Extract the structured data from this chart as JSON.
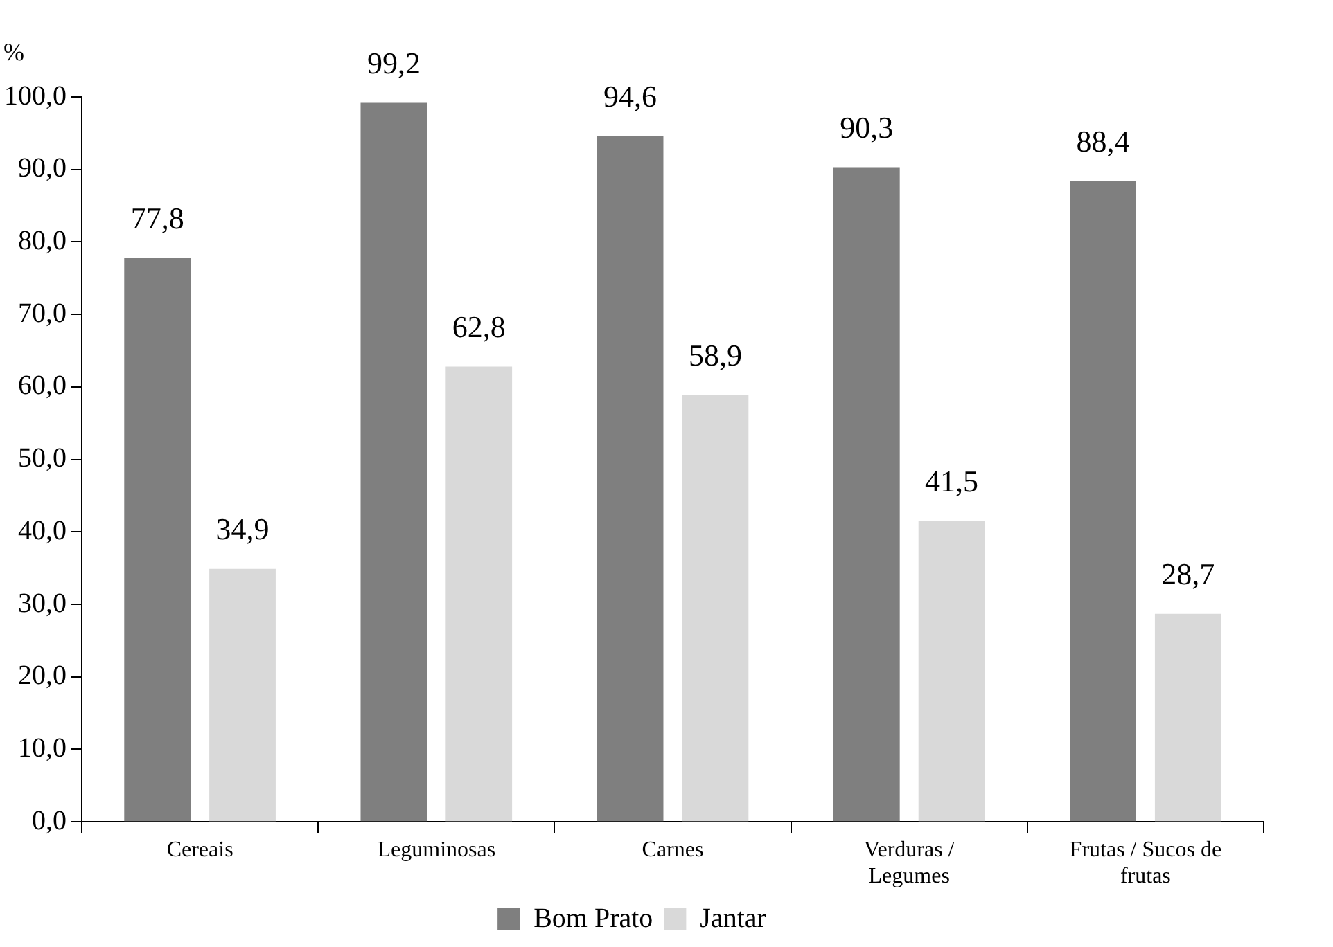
{
  "chart_data": {
    "type": "bar",
    "ylabel": "%",
    "categories": [
      "Cereais",
      "Leguminosas",
      "Carnes",
      "Verduras / Legumes",
      "Frutas / Sucos de frutas"
    ],
    "series": [
      {
        "name": "Bom Prato",
        "color": "#7f7f7f",
        "values": [
          77.8,
          99.2,
          94.6,
          90.3,
          88.4
        ]
      },
      {
        "name": "Jantar",
        "color": "#d9d9d9",
        "values": [
          34.9,
          62.8,
          58.9,
          41.5,
          28.7
        ]
      }
    ],
    "ylim": [
      0,
      100
    ],
    "yticks": [
      {
        "value": 0,
        "label": "0,0"
      },
      {
        "value": 10,
        "label": "10,0"
      },
      {
        "value": 20,
        "label": "20,0"
      },
      {
        "value": 30,
        "label": "30,0"
      },
      {
        "value": 40,
        "label": "40,0"
      },
      {
        "value": 50,
        "label": "50,0"
      },
      {
        "value": 60,
        "label": "60,0"
      },
      {
        "value": 70,
        "label": "70,0"
      },
      {
        "value": 80,
        "label": "80,0"
      },
      {
        "value": 90,
        "label": "90,0"
      },
      {
        "value": 100,
        "label": "100,0"
      }
    ],
    "value_labels": [
      [
        "77,8",
        "99,2",
        "94,6",
        "90,3",
        "88,4"
      ],
      [
        "34,9",
        "62,8",
        "58,9",
        "41,5",
        "28,7"
      ]
    ],
    "grid": false,
    "legend": "bottom"
  }
}
